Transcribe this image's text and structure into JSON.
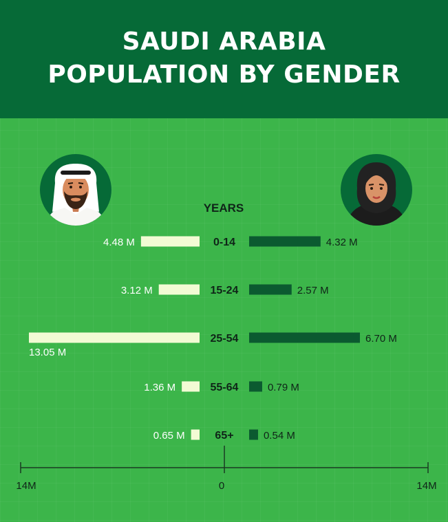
{
  "header": {
    "title_line1": "SAUDI ARABIA",
    "title_line2": "POPULATION BY GENDER"
  },
  "avatars": {
    "male_icon": "man-ghutra-icon",
    "female_icon": "woman-hijab-icon"
  },
  "colors": {
    "header_bg": "#066a37",
    "page_bg": "#3cb54a",
    "male_bar": "#f2fbd4",
    "female_bar": "#0b5a30",
    "axis": "#1a3a22",
    "label_light": "#ffffff",
    "label_dark": "#0f2418"
  },
  "chart_data": {
    "type": "bar",
    "orientation": "horizontal-diverging",
    "category_header": "YEARS",
    "categories": [
      "0-14",
      "15-24",
      "25-54",
      "55-64",
      "65+"
    ],
    "series": [
      {
        "values": [
          4.48,
          3.12,
          13.05,
          1.36,
          0.65
        ],
        "labels": [
          "4.48 M",
          "3.12 M",
          "13.05 M",
          "1.36 M",
          "0.65 M"
        ],
        "side": "left"
      },
      {
        "values": [
          4.32,
          2.57,
          6.7,
          0.79,
          0.54
        ],
        "labels": [
          "4.32 M",
          "2.57 M",
          "6.70 M",
          "0.79 M",
          "0.54 M"
        ],
        "side": "right"
      }
    ],
    "axis_ticks": [
      "14M",
      "0",
      "14M"
    ],
    "xlim": [
      -14,
      14
    ],
    "grid": false,
    "legend": "none"
  }
}
